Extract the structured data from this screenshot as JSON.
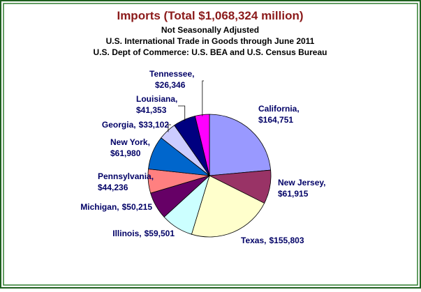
{
  "chart_data": {
    "type": "pie",
    "title": "Imports (Total $1,068,324 million)",
    "subtitles": [
      "Not Seasonally Adjusted",
      "U.S. International Trade in Goods through June 2011",
      "U.S. Dept of Commerce: U.S. BEA and U.S. Census Bureau"
    ],
    "categories": [
      "California,",
      "New Jersey,",
      "Texas,",
      "Illinois,",
      "Michigan,",
      "Pennsylvania,",
      "New York,",
      "Georgia,",
      "Louisiana,",
      "Tennessee,"
    ],
    "values": [
      164751,
      61915,
      155803,
      59501,
      50215,
      44236,
      61980,
      33102,
      41353,
      26346
    ],
    "value_labels": [
      "$164,751",
      "$61,915",
      "$155,803",
      "$59,501",
      "$50,215",
      "$44,236",
      "$61,980",
      "$33,102",
      "$41,353",
      "$26,346"
    ],
    "colors": [
      "#9999ff",
      "#993366",
      "#ffffcc",
      "#ccffff",
      "#660066",
      "#ff8080",
      "#0066cc",
      "#ccccff",
      "#000080",
      "#ff00ff"
    ]
  }
}
